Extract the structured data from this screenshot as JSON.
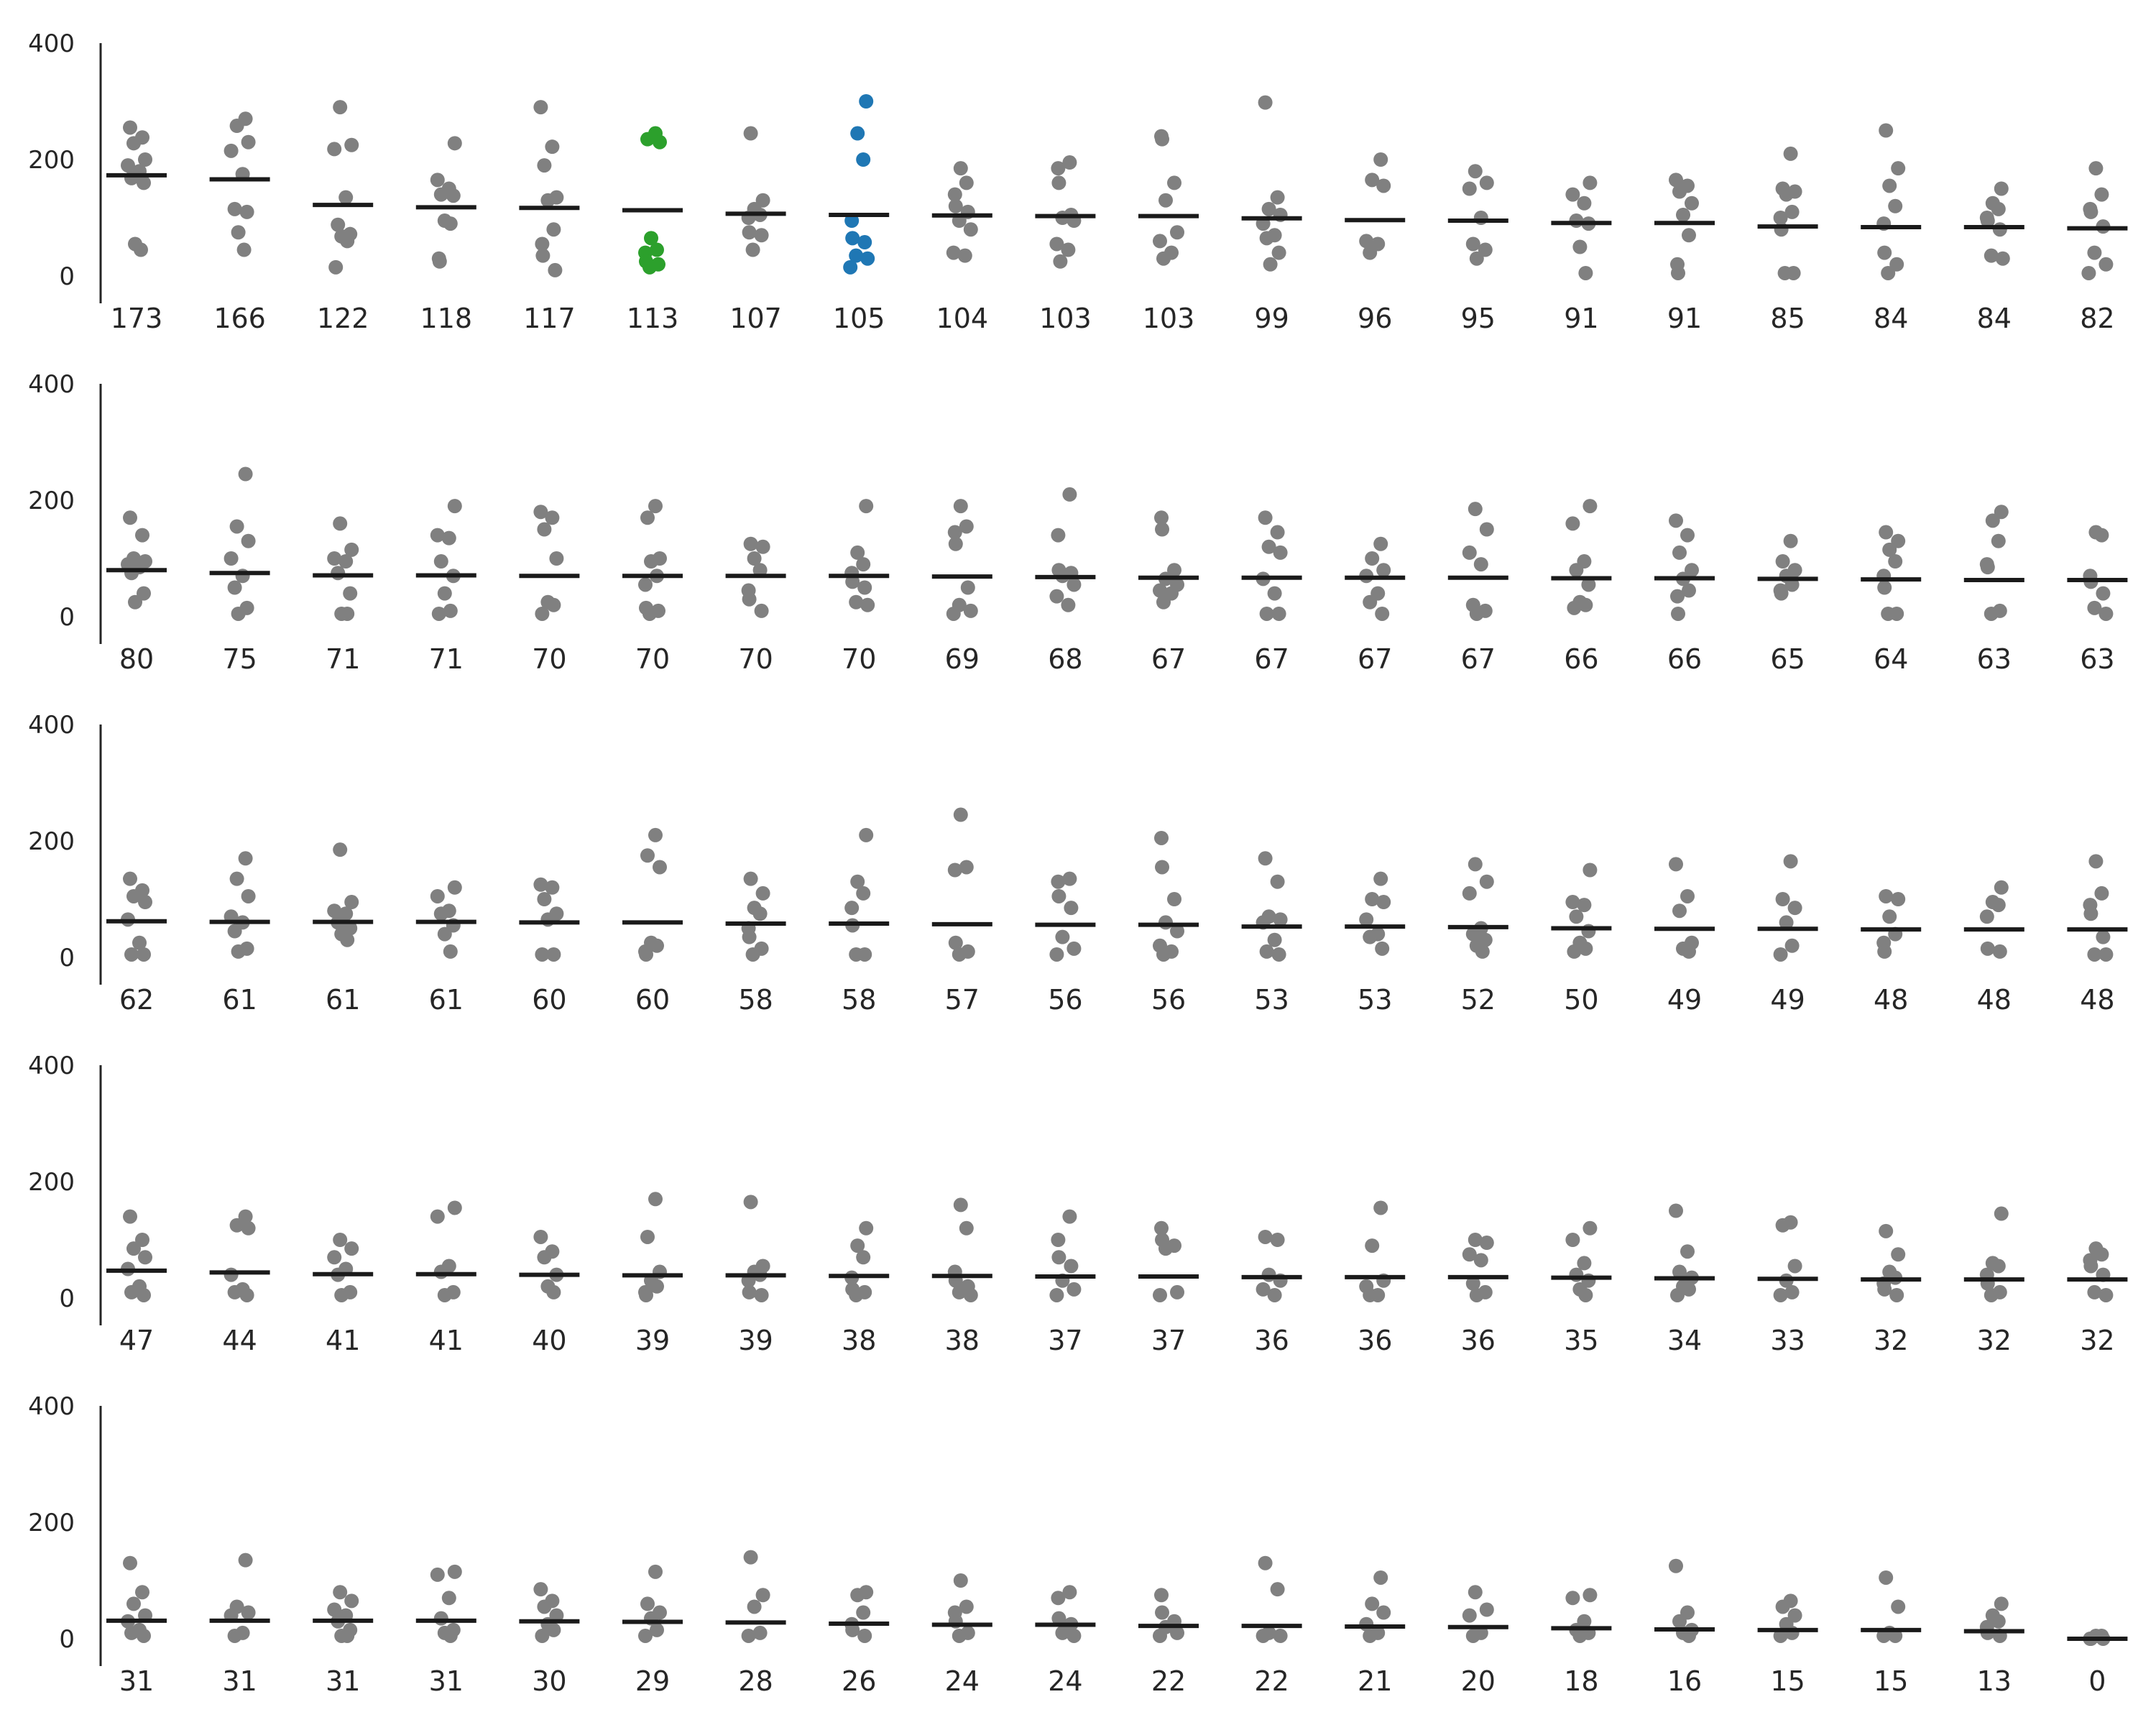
{
  "chart_data": {
    "type": "scatter",
    "subtype": "strip-plot-with-mean-bars",
    "title": "",
    "xlabel": "",
    "ylabel": "",
    "ylim": [
      0,
      400
    ],
    "yticks": [
      0,
      200,
      400
    ],
    "grid": false,
    "legend": "none",
    "colors": {
      "points": "#808080",
      "highlight_green": "#2ca02c",
      "highlight_blue": "#1f77b4",
      "mean_bar": "#1a1a1a",
      "axis": "#262626",
      "text": "#262626"
    },
    "rows": [
      {
        "categories": [
          "173",
          "166",
          "122",
          "118",
          "117",
          "113",
          "107",
          "105",
          "104",
          "103",
          "103",
          "99",
          "96",
          "95",
          "91",
          "91",
          "85",
          "84",
          "84",
          "82"
        ],
        "means": [
          173,
          166,
          122,
          118,
          117,
          113,
          107,
          105,
          104,
          103,
          103,
          99,
          96,
          95,
          91,
          91,
          85,
          84,
          84,
          82
        ],
        "highlight": {
          "5": "highlight_green",
          "7": "highlight_blue"
        },
        "points": [
          [
            255,
            238,
            228,
            200,
            190,
            180,
            168,
            160,
            55,
            45
          ],
          [
            270,
            258,
            230,
            215,
            175,
            115,
            110,
            75,
            45
          ],
          [
            290,
            225,
            218,
            135,
            88,
            72,
            68,
            60,
            15
          ],
          [
            228,
            165,
            150,
            140,
            138,
            95,
            90,
            30,
            25
          ],
          [
            290,
            222,
            190,
            135,
            130,
            80,
            55,
            35,
            10
          ],
          [
            245,
            235,
            230,
            65,
            45,
            40,
            25,
            20,
            15
          ],
          [
            245,
            130,
            115,
            105,
            100,
            75,
            70,
            45
          ],
          [
            300,
            245,
            200,
            95,
            65,
            58,
            35,
            30,
            15
          ],
          [
            185,
            160,
            140,
            120,
            110,
            95,
            80,
            40,
            35
          ],
          [
            195,
            185,
            160,
            105,
            100,
            95,
            55,
            45,
            25
          ],
          [
            240,
            235,
            160,
            130,
            75,
            60,
            40,
            30
          ],
          [
            298,
            135,
            115,
            105,
            90,
            70,
            65,
            40,
            20
          ],
          [
            200,
            165,
            155,
            60,
            55,
            40
          ],
          [
            180,
            160,
            150,
            100,
            55,
            45,
            30
          ],
          [
            160,
            140,
            125,
            95,
            90,
            50,
            5
          ],
          [
            165,
            155,
            145,
            125,
            105,
            70,
            20,
            5
          ],
          [
            210,
            150,
            145,
            140,
            110,
            100,
            80,
            5,
            5
          ],
          [
            250,
            185,
            155,
            120,
            90,
            40,
            20,
            5
          ],
          [
            150,
            125,
            115,
            100,
            95,
            80,
            35,
            30
          ],
          [
            185,
            140,
            115,
            110,
            85,
            40,
            20,
            5
          ]
        ]
      },
      {
        "categories": [
          "80",
          "75",
          "71",
          "71",
          "70",
          "70",
          "70",
          "70",
          "69",
          "68",
          "67",
          "67",
          "67",
          "67",
          "66",
          "66",
          "65",
          "64",
          "63",
          "63"
        ],
        "means": [
          80,
          75,
          71,
          71,
          70,
          70,
          70,
          70,
          69,
          68,
          67,
          67,
          67,
          67,
          66,
          66,
          65,
          64,
          63,
          63
        ],
        "points": [
          [
            170,
            140,
            100,
            95,
            90,
            85,
            75,
            40,
            25
          ],
          [
            245,
            155,
            130,
            100,
            70,
            50,
            15,
            5
          ],
          [
            160,
            115,
            100,
            95,
            75,
            40,
            5,
            5
          ],
          [
            190,
            140,
            135,
            95,
            70,
            40,
            10,
            5
          ],
          [
            180,
            170,
            150,
            100,
            25,
            20,
            5
          ],
          [
            190,
            170,
            100,
            95,
            70,
            55,
            15,
            10,
            5
          ],
          [
            125,
            120,
            100,
            80,
            45,
            30,
            10
          ],
          [
            190,
            110,
            90,
            75,
            60,
            50,
            25,
            20
          ],
          [
            190,
            155,
            145,
            125,
            50,
            20,
            10,
            5
          ],
          [
            210,
            140,
            80,
            75,
            70,
            55,
            35,
            20
          ],
          [
            170,
            150,
            80,
            65,
            55,
            45,
            40,
            25
          ],
          [
            170,
            145,
            120,
            110,
            65,
            40,
            5,
            5
          ],
          [
            125,
            100,
            80,
            70,
            40,
            25,
            5
          ],
          [
            185,
            150,
            110,
            90,
            20,
            10,
            5
          ],
          [
            190,
            160,
            95,
            80,
            55,
            25,
            20,
            15
          ],
          [
            165,
            140,
            110,
            80,
            65,
            45,
            35,
            5
          ],
          [
            130,
            95,
            80,
            70,
            55,
            45,
            40
          ],
          [
            145,
            130,
            115,
            95,
            70,
            50,
            5,
            5
          ],
          [
            180,
            165,
            130,
            90,
            85,
            10,
            5
          ],
          [
            145,
            140,
            70,
            60,
            40,
            15,
            5
          ]
        ]
      },
      {
        "categories": [
          "62",
          "61",
          "61",
          "61",
          "60",
          "60",
          "58",
          "58",
          "57",
          "56",
          "56",
          "53",
          "53",
          "52",
          "50",
          "49",
          "49",
          "48",
          "48",
          "48"
        ],
        "means": [
          62,
          61,
          61,
          61,
          60,
          60,
          58,
          58,
          57,
          56,
          56,
          53,
          53,
          52,
          50,
          49,
          49,
          48,
          48,
          48
        ],
        "points": [
          [
            135,
            115,
            105,
            95,
            65,
            25,
            5,
            5
          ],
          [
            170,
            135,
            105,
            70,
            60,
            45,
            15,
            10
          ],
          [
            185,
            95,
            80,
            75,
            60,
            50,
            40,
            30
          ],
          [
            120,
            105,
            80,
            75,
            55,
            40,
            10
          ],
          [
            125,
            120,
            100,
            75,
            65,
            5,
            5
          ],
          [
            210,
            175,
            155,
            25,
            20,
            10,
            5
          ],
          [
            135,
            110,
            85,
            75,
            50,
            35,
            15,
            5
          ],
          [
            210,
            130,
            110,
            85,
            55,
            5,
            5
          ],
          [
            245,
            155,
            150,
            25,
            10,
            5
          ],
          [
            135,
            130,
            105,
            85,
            35,
            15,
            5
          ],
          [
            205,
            155,
            100,
            60,
            45,
            20,
            10,
            5
          ],
          [
            170,
            130,
            70,
            65,
            60,
            30,
            10,
            5
          ],
          [
            135,
            100,
            95,
            65,
            40,
            35,
            15
          ],
          [
            160,
            130,
            110,
            50,
            40,
            30,
            20,
            10
          ],
          [
            150,
            95,
            90,
            70,
            45,
            25,
            15,
            10
          ],
          [
            160,
            105,
            80,
            25,
            15,
            10
          ],
          [
            165,
            100,
            85,
            60,
            20,
            5
          ],
          [
            105,
            100,
            70,
            40,
            25,
            10
          ],
          [
            120,
            95,
            90,
            70,
            15,
            10
          ],
          [
            165,
            110,
            90,
            75,
            35,
            5,
            5
          ]
        ]
      },
      {
        "categories": [
          "47",
          "44",
          "41",
          "41",
          "40",
          "39",
          "39",
          "38",
          "38",
          "37",
          "37",
          "36",
          "36",
          "36",
          "35",
          "34",
          "33",
          "32",
          "32",
          "32"
        ],
        "means": [
          47,
          44,
          41,
          41,
          40,
          39,
          39,
          38,
          38,
          37,
          37,
          36,
          36,
          36,
          35,
          34,
          33,
          32,
          32,
          32
        ],
        "points": [
          [
            140,
            100,
            85,
            70,
            50,
            20,
            10,
            5
          ],
          [
            140,
            125,
            120,
            40,
            15,
            10,
            5
          ],
          [
            100,
            85,
            70,
            50,
            40,
            10,
            5
          ],
          [
            155,
            140,
            55,
            45,
            10,
            5
          ],
          [
            105,
            80,
            70,
            40,
            20,
            10
          ],
          [
            170,
            105,
            45,
            30,
            20,
            10,
            5
          ],
          [
            165,
            55,
            45,
            40,
            30,
            10,
            5
          ],
          [
            120,
            90,
            70,
            35,
            15,
            10,
            5
          ],
          [
            160,
            120,
            45,
            30,
            20,
            10,
            5
          ],
          [
            140,
            100,
            70,
            55,
            30,
            15,
            5
          ],
          [
            120,
            100,
            90,
            85,
            10,
            5
          ],
          [
            105,
            100,
            40,
            30,
            15,
            5
          ],
          [
            155,
            90,
            30,
            20,
            5,
            5
          ],
          [
            100,
            95,
            75,
            65,
            25,
            10,
            5
          ],
          [
            120,
            100,
            60,
            40,
            30,
            15,
            5
          ],
          [
            150,
            80,
            45,
            35,
            20,
            15,
            5
          ],
          [
            130,
            125,
            55,
            30,
            10,
            5
          ],
          [
            115,
            75,
            45,
            35,
            25,
            15,
            5
          ],
          [
            145,
            60,
            55,
            40,
            25,
            10,
            5
          ],
          [
            85,
            75,
            65,
            55,
            40,
            10,
            5
          ]
        ]
      },
      {
        "categories": [
          "31",
          "31",
          "31",
          "31",
          "30",
          "29",
          "28",
          "26",
          "24",
          "24",
          "22",
          "22",
          "21",
          "20",
          "18",
          "16",
          "15",
          "15",
          "13",
          "0"
        ],
        "means": [
          31,
          31,
          31,
          31,
          30,
          29,
          28,
          26,
          24,
          24,
          22,
          22,
          21,
          20,
          18,
          16,
          15,
          15,
          13,
          0
        ],
        "points": [
          [
            130,
            80,
            60,
            40,
            30,
            15,
            10,
            5
          ],
          [
            135,
            55,
            45,
            40,
            10,
            5
          ],
          [
            80,
            65,
            50,
            40,
            30,
            15,
            5,
            5
          ],
          [
            115,
            110,
            70,
            35,
            15,
            10,
            5
          ],
          [
            85,
            65,
            55,
            40,
            25,
            15,
            5
          ],
          [
            115,
            60,
            45,
            35,
            15,
            5
          ],
          [
            140,
            75,
            55,
            10,
            5
          ],
          [
            80,
            75,
            45,
            25,
            15,
            5
          ],
          [
            100,
            55,
            45,
            30,
            10,
            5
          ],
          [
            80,
            70,
            35,
            25,
            10,
            5
          ],
          [
            75,
            45,
            30,
            20,
            10,
            5
          ],
          [
            130,
            85,
            10,
            5,
            5
          ],
          [
            105,
            60,
            45,
            25,
            10,
            5
          ],
          [
            80,
            50,
            40,
            10,
            5
          ],
          [
            75,
            70,
            30,
            15,
            10,
            5
          ],
          [
            125,
            45,
            30,
            15,
            10,
            5
          ],
          [
            65,
            55,
            40,
            25,
            10,
            5
          ],
          [
            105,
            55,
            10,
            5,
            5
          ],
          [
            60,
            40,
            30,
            20,
            10,
            5
          ],
          [
            5,
            5,
            0,
            0,
            0
          ]
        ]
      }
    ]
  }
}
